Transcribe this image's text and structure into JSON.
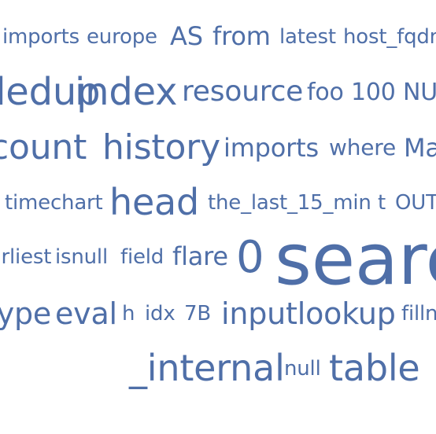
{
  "word_cloud": {
    "color": "#4f6fa8",
    "words": [
      "imports",
      "europe",
      "AS",
      "from",
      "latest",
      "host_fqdn",
      "dedup",
      "index",
      "resource",
      "foo",
      "100",
      "NULL",
      "count",
      "history",
      "imports",
      "where",
      "Ma",
      "timechart",
      "head",
      "the_last_15_min",
      "t",
      "OUT",
      "earliest",
      "isnull",
      "field",
      "flare",
      "0",
      "search",
      "type",
      "eval",
      "h",
      "idx",
      "7B",
      "inputlookup",
      "fillnull",
      "_internal",
      "null",
      "table"
    ]
  }
}
